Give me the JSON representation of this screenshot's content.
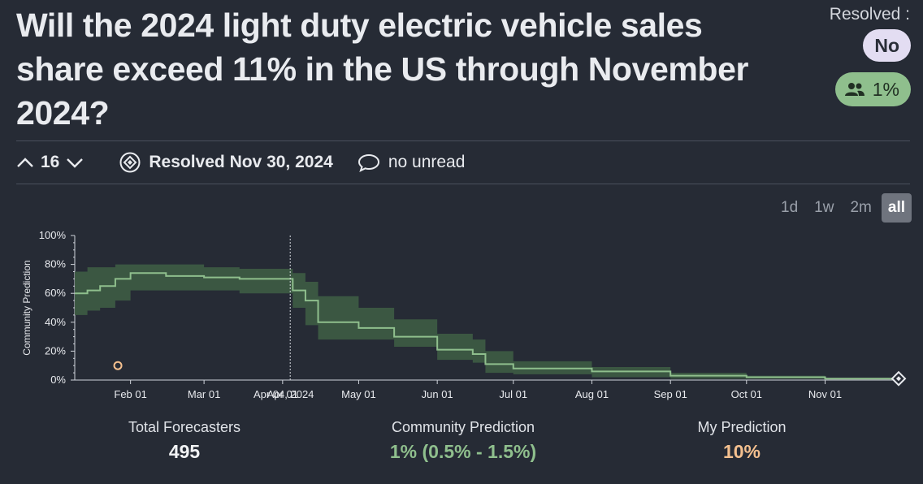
{
  "question": {
    "title": "Will the 2024 light duty electric vehicle sales share exceed 11% in the US through November 2024?",
    "resolved_label": "Resolved :",
    "resolution": "No",
    "community_badge": "1%"
  },
  "meta": {
    "vote_count": "16",
    "resolved_date": "Resolved Nov 30, 2024",
    "comments": "no unread"
  },
  "range_buttons": [
    "1d",
    "1w",
    "2m",
    "all"
  ],
  "active_range": "all",
  "colors": {
    "background": "#262b35",
    "line": "#8fbf8d",
    "band": "#3c5a43",
    "my_prediction": "#f4c08f",
    "resolution_no": "#e3ddf2"
  },
  "stats": {
    "total_label": "Total Forecasters",
    "total_value": "495",
    "cp_label": "Community Prediction",
    "cp_value": "1% (0.5% - 1.5%)",
    "my_label": "My Prediction",
    "my_value": "10%"
  },
  "chart_data": {
    "type": "area",
    "ylabel": "Community Prediction",
    "y_ticks": [
      "0%",
      "20%",
      "40%",
      "60%",
      "80%",
      "100%"
    ],
    "ylim": [
      0,
      100
    ],
    "x_ticks": [
      "Feb 01",
      "Mar 01",
      "Apr 01",
      "May 01",
      "Jun 01",
      "Jul 01",
      "Aug 01",
      "Sep 01",
      "Oct 01",
      "Nov 01"
    ],
    "xlim": [
      "2024-01-10",
      "2024-11-30"
    ],
    "marker_label": "Apr 04, 2024",
    "marker_date": "2024-04-04",
    "series": [
      {
        "name": "Community Prediction",
        "points": [
          [
            "2024-01-10",
            60,
            45,
            75
          ],
          [
            "2024-01-15",
            62,
            48,
            78
          ],
          [
            "2024-01-20",
            65,
            50,
            78
          ],
          [
            "2024-01-26",
            70,
            55,
            80
          ],
          [
            "2024-02-01",
            74,
            62,
            80
          ],
          [
            "2024-02-15",
            72,
            62,
            80
          ],
          [
            "2024-03-01",
            71,
            62,
            78
          ],
          [
            "2024-03-15",
            70,
            60,
            77
          ],
          [
            "2024-04-01",
            70,
            60,
            77
          ],
          [
            "2024-04-05",
            62,
            50,
            74
          ],
          [
            "2024-04-10",
            55,
            38,
            68
          ],
          [
            "2024-04-15",
            40,
            28,
            58
          ],
          [
            "2024-05-01",
            36,
            28,
            50
          ],
          [
            "2024-05-15",
            30,
            23,
            42
          ],
          [
            "2024-06-01",
            21,
            14,
            32
          ],
          [
            "2024-06-15",
            18,
            12,
            28
          ],
          [
            "2024-06-20",
            11,
            5,
            20
          ],
          [
            "2024-07-01",
            8,
            4,
            13
          ],
          [
            "2024-08-01",
            6,
            2,
            9
          ],
          [
            "2024-09-01",
            3,
            1,
            5
          ],
          [
            "2024-10-01",
            2,
            1,
            3
          ],
          [
            "2024-11-01",
            1,
            0.5,
            1.5
          ],
          [
            "2024-11-30",
            1,
            0.5,
            1.5
          ]
        ]
      }
    ],
    "my_prediction": {
      "date": "2024-01-27",
      "value": 10
    },
    "resolution_marker": {
      "date": "2024-11-30",
      "value": 1
    }
  }
}
